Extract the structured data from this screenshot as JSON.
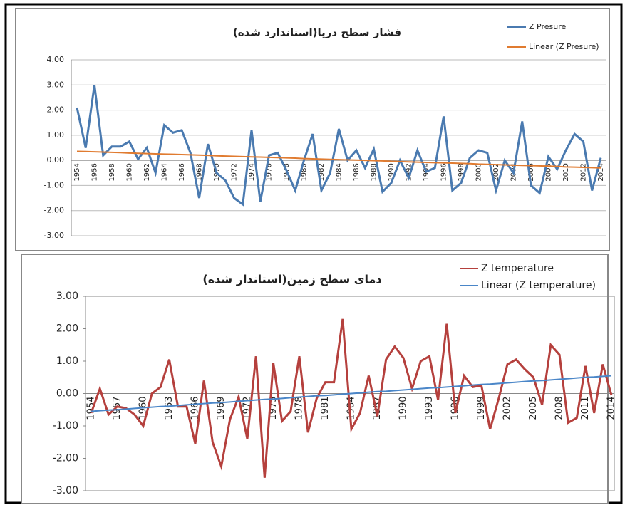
{
  "chart_data": [
    {
      "type": "line",
      "title": "فشار سطح دریا(استاندارد شده)",
      "categories": [
        1954,
        null,
        1956,
        null,
        1958,
        null,
        1960,
        null,
        1962,
        null,
        1964,
        null,
        1966,
        null,
        1968,
        null,
        1970,
        null,
        1972,
        null,
        1974,
        null,
        1976,
        null,
        1978,
        null,
        1980,
        null,
        1982,
        null,
        1984,
        null,
        1986,
        null,
        1988,
        null,
        1990,
        null,
        1992,
        null,
        1994,
        null,
        1996,
        null,
        1998,
        null,
        2000,
        null,
        2002,
        null,
        2004,
        null,
        2006,
        null,
        2008,
        null,
        2010,
        null,
        2012,
        null,
        2014
      ],
      "series": [
        {
          "name": "Z Presure",
          "color": "#4a7ab0",
          "values": [
            2.1,
            0.5,
            3.0,
            0.2,
            0.55,
            0.55,
            0.75,
            0.05,
            0.5,
            -0.5,
            1.4,
            1.1,
            1.2,
            0.3,
            -1.5,
            0.65,
            -0.5,
            -0.8,
            -1.5,
            -1.75,
            1.2,
            -1.65,
            0.2,
            0.3,
            -0.4,
            -1.2,
            0.0,
            1.05,
            -1.2,
            -0.5,
            1.25,
            0.0,
            0.4,
            -0.3,
            0.45,
            -1.25,
            -0.9,
            0.0,
            -0.7,
            0.4,
            -0.45,
            -0.3,
            1.75,
            -1.2,
            -0.9,
            0.1,
            0.4,
            0.3,
            -1.2,
            0.0,
            -0.5,
            1.55,
            -1.0,
            -1.3,
            0.15,
            -0.35,
            0.4,
            1.05,
            0.75,
            -1.2,
            0.1
          ]
        },
        {
          "name": "Linear (Z Presure)",
          "color": "#e07b30",
          "values": [
            0.36,
            0.35,
            0.34,
            0.33,
            0.32,
            0.31,
            0.29,
            0.28,
            0.27,
            0.26,
            0.25,
            0.24,
            0.23,
            0.22,
            0.21,
            0.2,
            0.18,
            0.17,
            0.16,
            0.15,
            0.14,
            0.13,
            0.12,
            0.11,
            0.1,
            0.09,
            0.07,
            0.06,
            0.05,
            0.04,
            0.03,
            0.02,
            0.01,
            0.0,
            -0.01,
            -0.02,
            -0.04,
            -0.05,
            -0.06,
            -0.07,
            -0.08,
            -0.09,
            -0.1,
            -0.11,
            -0.12,
            -0.13,
            -0.15,
            -0.16,
            -0.17,
            -0.18,
            -0.19,
            -0.2,
            -0.21,
            -0.22,
            -0.23,
            -0.24,
            -0.26,
            -0.27,
            -0.28,
            -0.29,
            -0.3
          ]
        }
      ],
      "ylim": [
        -3,
        4
      ],
      "yticks": [
        {
          "value": -3,
          "label": "-3.00"
        },
        {
          "value": -2,
          "label": "-2.00"
        },
        {
          "value": -1,
          "label": "-1.00"
        },
        {
          "value": 0,
          "label": "0.00"
        },
        {
          "value": 1,
          "label": "1.00"
        },
        {
          "value": 2,
          "label": "2.00"
        },
        {
          "value": 3,
          "label": "3.00"
        },
        {
          "value": 4,
          "label": "4.00"
        }
      ],
      "grid": true,
      "legend": "top-right"
    },
    {
      "type": "line",
      "title": "دمای سطح زمین(استاندار شده)",
      "categories": [
        1954,
        null,
        null,
        1957,
        null,
        null,
        1960,
        null,
        null,
        1963,
        null,
        null,
        1966,
        null,
        null,
        1969,
        null,
        null,
        1972,
        null,
        null,
        1975,
        null,
        null,
        1978,
        null,
        null,
        1981,
        null,
        null,
        1984,
        null,
        null,
        1987,
        null,
        null,
        1990,
        null,
        null,
        1993,
        null,
        null,
        1996,
        null,
        null,
        1999,
        null,
        null,
        2002,
        null,
        null,
        2005,
        null,
        null,
        2008,
        null,
        null,
        2011,
        null,
        null,
        2014
      ],
      "series": [
        {
          "name": "Z temperature",
          "color": "#b5403d",
          "values": [
            -0.6,
            0.15,
            -0.65,
            -0.4,
            -0.45,
            -0.65,
            -1.0,
            0.0,
            0.2,
            1.05,
            -0.4,
            -0.4,
            -1.55,
            0.4,
            -1.5,
            -2.25,
            -0.8,
            -0.1,
            -1.4,
            1.15,
            -2.6,
            0.95,
            -0.85,
            -0.55,
            1.15,
            -1.2,
            -0.15,
            0.35,
            0.35,
            2.3,
            -1.1,
            -0.6,
            0.55,
            -0.7,
            1.05,
            1.45,
            1.1,
            0.15,
            1.0,
            1.15,
            -0.2,
            2.15,
            -0.6,
            0.55,
            0.2,
            0.25,
            -1.1,
            -0.15,
            0.9,
            1.05,
            0.75,
            0.5,
            -0.35,
            1.5,
            1.2,
            -0.9,
            -0.75,
            0.85,
            -0.6,
            0.9,
            -0.05
          ]
        },
        {
          "name": "Linear (Z temperature)",
          "color": "#4a86c8",
          "values": [
            -0.55,
            -0.53,
            -0.51,
            -0.5,
            -0.48,
            -0.46,
            -0.44,
            -0.42,
            -0.4,
            -0.39,
            -0.37,
            -0.35,
            -0.33,
            -0.31,
            -0.29,
            -0.28,
            -0.26,
            -0.24,
            -0.22,
            -0.2,
            -0.18,
            -0.17,
            -0.15,
            -0.13,
            -0.11,
            -0.09,
            -0.07,
            -0.06,
            -0.04,
            -0.02,
            0.0,
            0.02,
            0.04,
            0.06,
            0.07,
            0.09,
            0.11,
            0.13,
            0.15,
            0.17,
            0.18,
            0.2,
            0.22,
            0.24,
            0.26,
            0.28,
            0.29,
            0.31,
            0.33,
            0.35,
            0.37,
            0.39,
            0.4,
            0.42,
            0.44,
            0.46,
            0.48,
            0.5,
            0.51,
            0.53,
            0.55
          ]
        }
      ],
      "ylim": [
        -3,
        3
      ],
      "yticks": [
        {
          "value": -3,
          "label": "-3.00"
        },
        {
          "value": -2,
          "label": "-2.00"
        },
        {
          "value": -1,
          "label": "-1.00"
        },
        {
          "value": 0,
          "label": "0.00"
        },
        {
          "value": 1,
          "label": "1.00"
        },
        {
          "value": 2,
          "label": "2.00"
        },
        {
          "value": 3,
          "label": "3.00"
        }
      ],
      "grid": false,
      "legend": "top-right"
    }
  ]
}
